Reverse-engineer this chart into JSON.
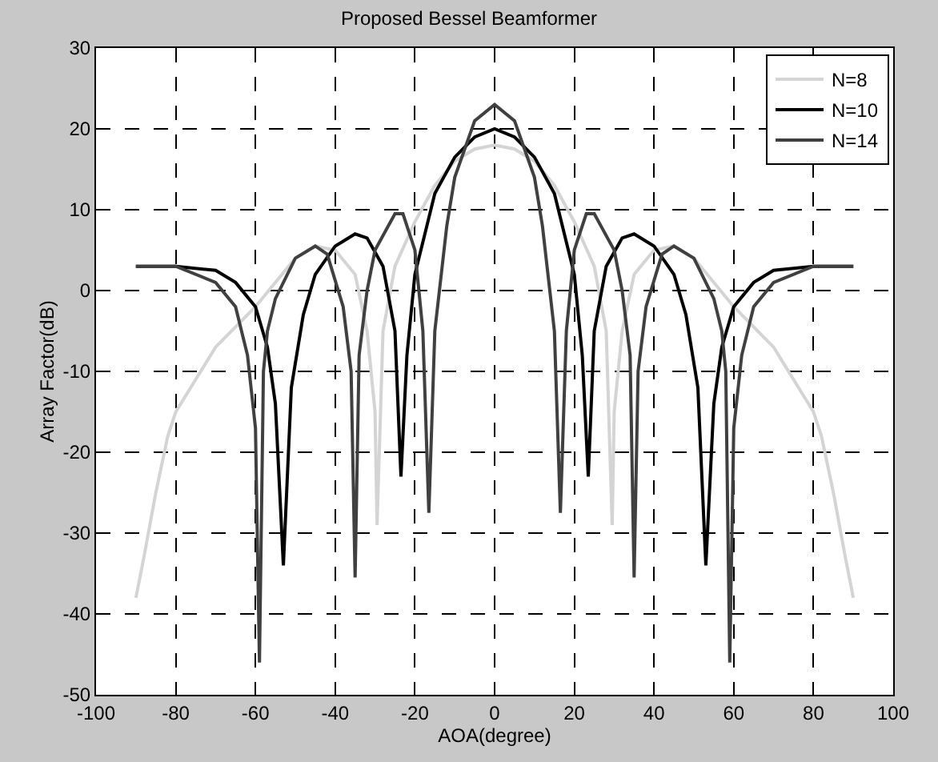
{
  "chart_data": {
    "type": "line",
    "title": "Proposed Bessel Beamformer",
    "xlabel": "AOA(degree)",
    "ylabel": "Array Factor(dB)",
    "xlim": [
      -100,
      100
    ],
    "xticks": [
      -100,
      -80,
      -60,
      -40,
      -20,
      0,
      20,
      40,
      60,
      80,
      100
    ],
    "ylim": [
      -50,
      30
    ],
    "yticks": [
      -50,
      -40,
      -30,
      -20,
      -10,
      0,
      10,
      20,
      30
    ],
    "grid": true,
    "legend": "top right",
    "line_style": "solid",
    "marker": "none",
    "series": [
      {
        "name": "N=8",
        "color": "#d4d4d4",
        "x": [
          -90,
          -88,
          -85,
          -82,
          -80,
          -70,
          -60,
          -50,
          -45,
          -40,
          -35,
          -32,
          -30,
          -29.5,
          -28,
          -25,
          -20,
          -15,
          -10,
          -5,
          0,
          5,
          10,
          15,
          20,
          25,
          28,
          29.5,
          30,
          32,
          35,
          40,
          45,
          50,
          60,
          70,
          80,
          82,
          85,
          88,
          90
        ],
        "values": [
          -38,
          -33,
          -25,
          -18,
          -15,
          -7,
          -2,
          4,
          5.5,
          5,
          2,
          -5,
          -15,
          -29,
          -5,
          3,
          8.5,
          13,
          16,
          17.5,
          18,
          17.5,
          16,
          13,
          8.5,
          3,
          -5,
          -29,
          -15,
          -5,
          2,
          5,
          5.5,
          4,
          -2,
          -7,
          -15,
          -18,
          -25,
          -33,
          -38
        ]
      },
      {
        "name": "N=10",
        "color": "#000000",
        "x": [
          -90,
          -80,
          -70,
          -65,
          -60,
          -57,
          -55,
          -53,
          -51,
          -48,
          -45,
          -40,
          -35,
          -32,
          -28,
          -25,
          -23.5,
          -22,
          -20,
          -15,
          -10,
          -5,
          0,
          5,
          10,
          15,
          20,
          22,
          23.5,
          25,
          28,
          32,
          35,
          40,
          45,
          48,
          51,
          53,
          55,
          57,
          60,
          65,
          70,
          80,
          90
        ],
        "values": [
          3,
          3,
          2.5,
          1,
          -2,
          -7,
          -14,
          -34,
          -12,
          -3,
          2,
          5.5,
          7,
          6.5,
          3,
          -5,
          -23,
          -8,
          2,
          12,
          16.5,
          19,
          20,
          19,
          16.5,
          12,
          2,
          -8,
          -23,
          -5,
          3,
          6.5,
          7,
          5.5,
          2,
          -3,
          -12,
          -34,
          -14,
          -7,
          -2,
          1,
          2.5,
          3,
          3
        ]
      },
      {
        "name": "N=14",
        "color": "#404040",
        "x": [
          -90,
          -80,
          -70,
          -65,
          -62,
          -60,
          -59,
          -58,
          -57,
          -55,
          -50,
          -45,
          -42,
          -38,
          -36,
          -35,
          -34,
          -32,
          -30,
          -25,
          -23,
          -20,
          -18,
          -16.5,
          -15,
          -12,
          -10,
          -5,
          0,
          5,
          10,
          12,
          15,
          16.5,
          18,
          20,
          23,
          25,
          30,
          32,
          34,
          35,
          36,
          38,
          42,
          45,
          50,
          55,
          57,
          58,
          59,
          60,
          62,
          65,
          70,
          80,
          90
        ],
        "values": [
          3,
          3,
          1,
          -2,
          -8,
          -17,
          -46,
          -10,
          -5,
          -1,
          4,
          5.5,
          4.5,
          -2,
          -10,
          -35.5,
          -8,
          0,
          5,
          9.5,
          9.5,
          5,
          -5,
          -27.5,
          -5,
          8,
          14,
          21,
          23,
          21,
          14,
          8,
          -5,
          -27.5,
          -5,
          5,
          9.5,
          9.5,
          5,
          0,
          -8,
          -35.5,
          -10,
          -2,
          4.5,
          5.5,
          4,
          -1,
          -5,
          -10,
          -46,
          -17,
          -8,
          -2,
          1,
          3,
          3
        ]
      }
    ]
  }
}
